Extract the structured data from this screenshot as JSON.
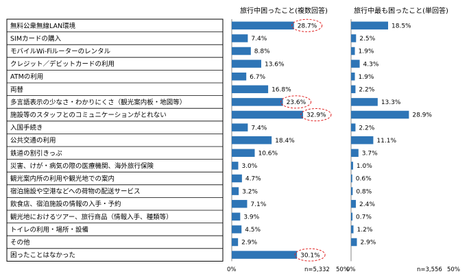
{
  "colors": {
    "bar": "#2e75b6",
    "highlight": "#e02020",
    "border": "#000000"
  },
  "chart_data": {
    "type": "bar",
    "orientation": "horizontal",
    "categories": [
      "無料公衆無線LAN環境",
      "SIMカードの購入",
      "モバイルWi-Fiルーターのレンタル",
      "クレジット／デビットカードの利用",
      "ATMの利用",
      "両替",
      "多言語表示の少なさ・わかりにくさ（観光案内板・地図等）",
      "施設等のスタッフとのコミュニケーションがとれない",
      "入国手続き",
      "公共交通の利用",
      "鉄道の割引きっぷ",
      "災害、けが・病気の際の医療機関、海外旅行保険",
      "観光案内所の利用や観光地での案内",
      "宿泊施設や空港などへの荷物の配送サービス",
      "飲食店、宿泊施設の情報の入手・予約",
      "観光地におけるツアー、旅行商品（情報入手、種類等）",
      "トイレの利用・場所・設備",
      "その他",
      "困ったことはなかった"
    ],
    "panels": [
      {
        "title": "旅行中困ったこと(複数回答)",
        "values": [
          28.7,
          7.4,
          8.8,
          13.6,
          6.7,
          16.8,
          23.6,
          32.9,
          7.4,
          18.4,
          10.6,
          3.0,
          4.7,
          3.2,
          7.1,
          3.9,
          4.5,
          2.9,
          30.1
        ],
        "value_labels": [
          "28.7%",
          "7.4%",
          "8.8%",
          "13.6%",
          "6.7%",
          "16.8%",
          "23.6%",
          "32.9%",
          "7.4%",
          "18.4%",
          "10.6%",
          "3.0%",
          "4.7%",
          "3.2%",
          "7.1%",
          "3.9%",
          "4.5%",
          "2.9%",
          "30.1%"
        ],
        "highlighted": [
          0,
          6,
          7,
          18
        ],
        "xlim": [
          0,
          50
        ],
        "x_tick_labels": [
          "0%",
          "50%"
        ],
        "n_label": "n=5,332"
      },
      {
        "title": "旅行中最も困ったこと(単回答)",
        "values": [
          18.5,
          2.5,
          1.9,
          4.3,
          1.9,
          2.2,
          13.3,
          28.9,
          2.2,
          11.1,
          3.7,
          1.0,
          0.6,
          0.8,
          2.4,
          0.7,
          1.2,
          2.9
        ],
        "value_labels": [
          "18.5%",
          "2.5%",
          "1.9%",
          "4.3%",
          "1.9%",
          "2.2%",
          "13.3%",
          "28.9%",
          "2.2%",
          "11.1%",
          "3.7%",
          "1.0%",
          "0.6%",
          "0.8%",
          "2.4%",
          "0.7%",
          "1.2%",
          "2.9%"
        ],
        "highlighted": [],
        "xlim": [
          0,
          50
        ],
        "x_tick_labels": [
          "0%",
          "50%"
        ],
        "n_label": "n=3,556"
      }
    ],
    "grid": false,
    "legend": "none"
  }
}
